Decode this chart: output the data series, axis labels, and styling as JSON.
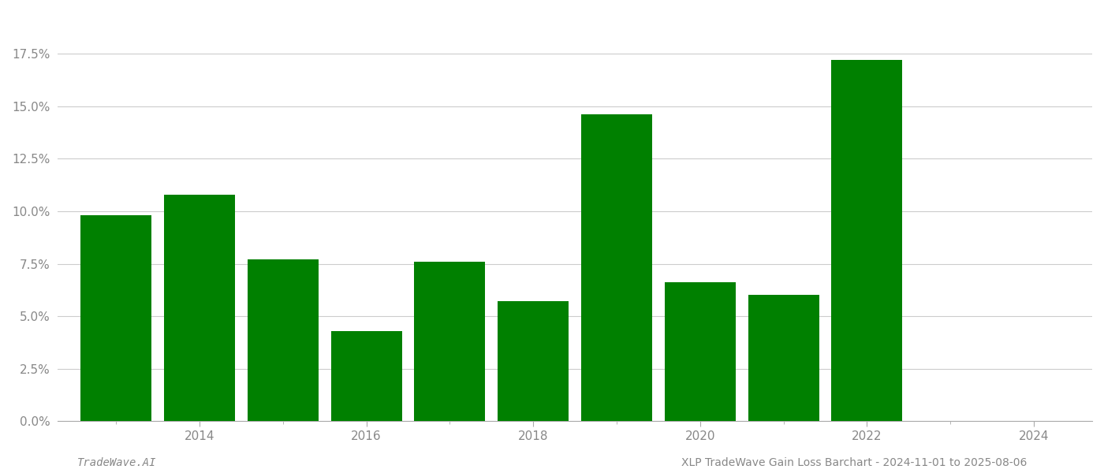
{
  "years": [
    2013,
    2014,
    2015,
    2016,
    2017,
    2018,
    2019,
    2020,
    2021,
    2022,
    2023
  ],
  "values": [
    0.098,
    0.108,
    0.077,
    0.043,
    0.076,
    0.057,
    0.146,
    0.066,
    0.06,
    0.172,
    0.0
  ],
  "bar_color": "#008000",
  "background_color": "#ffffff",
  "grid_color": "#cccccc",
  "ylim": [
    0,
    0.195
  ],
  "yticks": [
    0.0,
    0.025,
    0.05,
    0.075,
    0.1,
    0.125,
    0.15,
    0.175
  ],
  "xtick_labels_even": [
    "2014",
    "2016",
    "2018",
    "2020",
    "2022",
    "2024"
  ],
  "xtick_positions_even": [
    2014,
    2016,
    2018,
    2020,
    2022,
    2024
  ],
  "xlim": [
    2012.3,
    2024.7
  ],
  "footer_left": "TradeWave.AI",
  "footer_right": "XLP TradeWave Gain Loss Barchart - 2024-11-01 to 2025-08-06",
  "bar_width": 0.85
}
